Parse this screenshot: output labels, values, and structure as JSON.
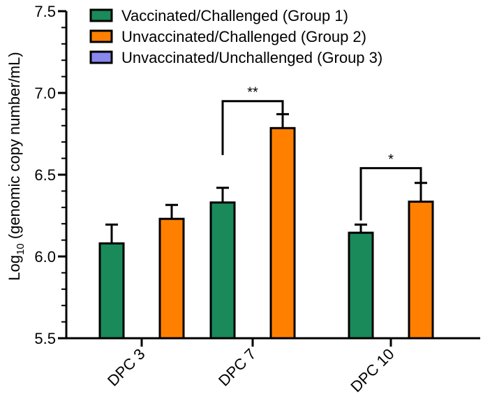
{
  "chart_data": {
    "type": "bar",
    "title": "",
    "xlabel": "",
    "ylabel": {
      "main": "Log",
      "subscript": "10",
      "rest": " (genomic copy number/mL)"
    },
    "ylim": [
      5.5,
      7.5
    ],
    "yticks": [
      5.5,
      6.0,
      6.5,
      7.0,
      7.5
    ],
    "ytick_labels": [
      "5.5",
      "6.0",
      "6.5",
      "7.0",
      "7.5"
    ],
    "categories": [
      "DPC 3",
      "DPC 7",
      "DPC 10"
    ],
    "series": [
      {
        "name": "Vaccinated/Challenged (Group 1)",
        "color": "#1a8a5a",
        "values": [
          6.08,
          6.33,
          6.145
        ],
        "errors": [
          0.115,
          0.09,
          0.05
        ]
      },
      {
        "name": "Unvaccinated/Challenged (Group 2)",
        "color": "#ff8000",
        "values": [
          6.23,
          6.785,
          6.335
        ],
        "errors": [
          0.085,
          0.085,
          0.115
        ]
      },
      {
        "name": "Unvaccinated/Unchallenged (Group 3)",
        "color": "#8888ee",
        "values": [
          null,
          null,
          null
        ],
        "errors": [
          null,
          null,
          null
        ]
      }
    ],
    "significance": [
      {
        "category_index": 1,
        "label": "**",
        "left_top": 6.62,
        "right_top": 6.8,
        "bracket_y": 6.95
      },
      {
        "category_index": 2,
        "label": "*",
        "left_top": 6.22,
        "right_top": 6.45,
        "bracket_y": 6.54
      }
    ],
    "legend_position": "top-right",
    "grid": false
  }
}
